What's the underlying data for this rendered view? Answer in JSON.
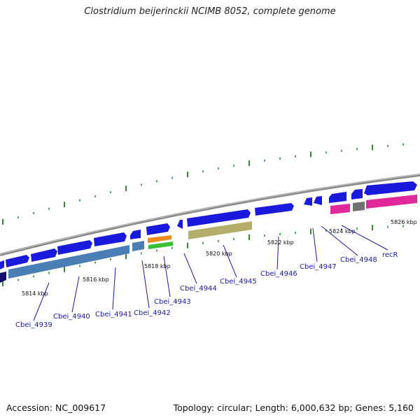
{
  "title": "Clostridium beijerinckii NCIMB 8052, complete genome",
  "accession": "Accession: NC_009617",
  "topology": "Topology: circular; Length: 6,000,632 bp; Genes: 5,160",
  "colors": {
    "backbone": "#8a8a8a",
    "tick": "#2f8a2f",
    "cds_forward": "#1a1adc",
    "steelblue": "#4a7fb5",
    "olive": "#b5ad6b",
    "orange": "#f08a1c",
    "green": "#3bbf3b",
    "magenta": "#e0289a",
    "gray_block": "#707070",
    "label": "#1a1aaa"
  },
  "kbp_labels": [
    "5814 kbp",
    "5816 kbp",
    "5818 kbp",
    "5820 kbp",
    "5822 kbp",
    "5824 kbp",
    "5826 kbp"
  ],
  "genes": [
    "Cbei_4939",
    "Cbei_4940",
    "Cbei_4941",
    "Cbei_4942",
    "Cbei_4943",
    "Cbei_4944",
    "Cbei_4945",
    "Cbei_4946",
    "Cbei_4947",
    "Cbei_4948",
    "recR"
  ]
}
